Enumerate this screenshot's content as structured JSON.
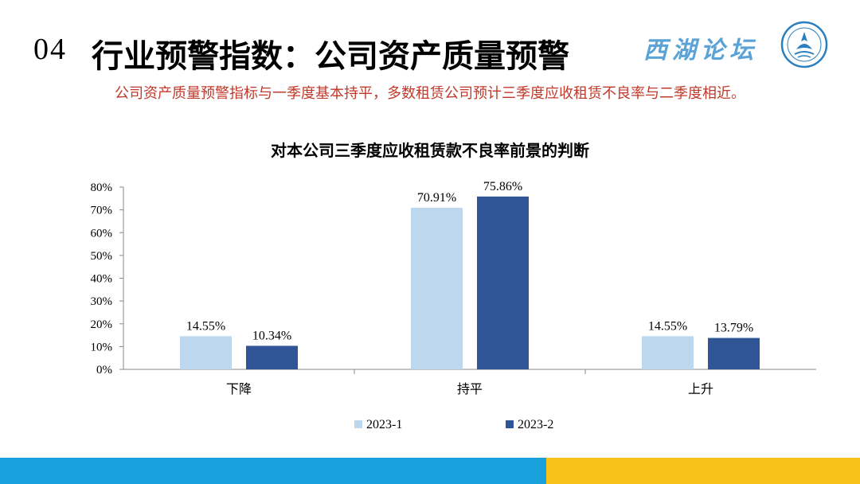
{
  "header": {
    "section_number": "04",
    "title": "行业预警指数：公司资产质量预警",
    "brand": "西湖论坛"
  },
  "subtitle": "公司资产质量预警指标与一季度基本持平，多数租赁公司预计三季度应收租赁不良率与二季度相近。",
  "colors": {
    "series_1": "#bdd7ee",
    "series_2": "#2f5597",
    "subtitle": "#c0392b",
    "bar_blue": "#17a0dc",
    "bar_yellow": "#f7c21b"
  },
  "chart_data": {
    "type": "bar",
    "title": "对本公司三季度应收租赁款不良率前景的判断",
    "categories": [
      "下降",
      "持平",
      "上升"
    ],
    "series": [
      {
        "name": "2023-1",
        "values": [
          14.55,
          70.91,
          14.55
        ],
        "labels": [
          "14.55%",
          "70.91%",
          "14.55%"
        ]
      },
      {
        "name": "2023-2",
        "values": [
          10.34,
          75.86,
          13.79
        ],
        "labels": [
          "10.34%",
          "75.86%",
          "13.79%"
        ]
      }
    ],
    "ylim": [
      0,
      80
    ],
    "yticks": [
      "0%",
      "10%",
      "20%",
      "30%",
      "40%",
      "50%",
      "60%",
      "70%",
      "80%"
    ],
    "grid": false,
    "legend": "bottom"
  }
}
